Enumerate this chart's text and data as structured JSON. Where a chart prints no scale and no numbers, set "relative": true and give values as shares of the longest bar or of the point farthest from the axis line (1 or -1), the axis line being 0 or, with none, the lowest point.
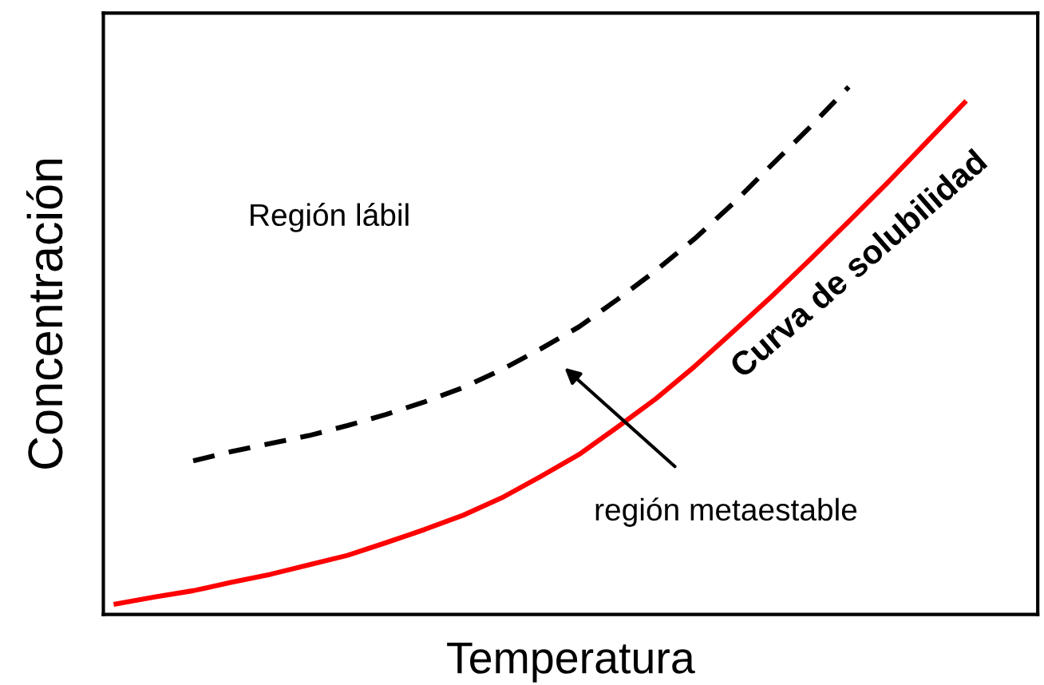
{
  "chart_data": {
    "type": "line",
    "relative": true,
    "xlabel": "Temperatura",
    "ylabel": "Concentración",
    "categories": [
      null,
      null,
      null,
      null,
      null,
      null,
      null,
      null,
      null,
      null,
      null,
      null,
      null,
      null,
      null,
      null,
      null,
      null,
      null,
      null,
      null,
      null,
      null
    ],
    "series": [
      {
        "name": "Curva de solubilidad",
        "color": "#ff0000",
        "line_style": "solid",
        "values": [
          0.02,
          0.033,
          0.045,
          0.061,
          0.076,
          0.094,
          0.112,
          0.136,
          0.161,
          0.188,
          0.221,
          0.261,
          0.303,
          0.355,
          0.409,
          0.47,
          0.536,
          0.603,
          0.673,
          0.745,
          0.818,
          0.894,
          0.97
        ]
      },
      {
        "color": "#000000",
        "line_style": "dashed",
        "values": [
          null,
          null,
          0.291,
          0.309,
          0.324,
          0.339,
          0.358,
          0.379,
          0.403,
          0.43,
          0.464,
          0.503,
          0.545,
          0.597,
          0.652,
          0.712,
          0.779,
          0.852,
          0.924,
          1.0,
          null,
          null,
          null
        ]
      }
    ],
    "annotations": [
      "Región lábil",
      "región metaestable"
    ],
    "legend": false,
    "marker": "none"
  }
}
